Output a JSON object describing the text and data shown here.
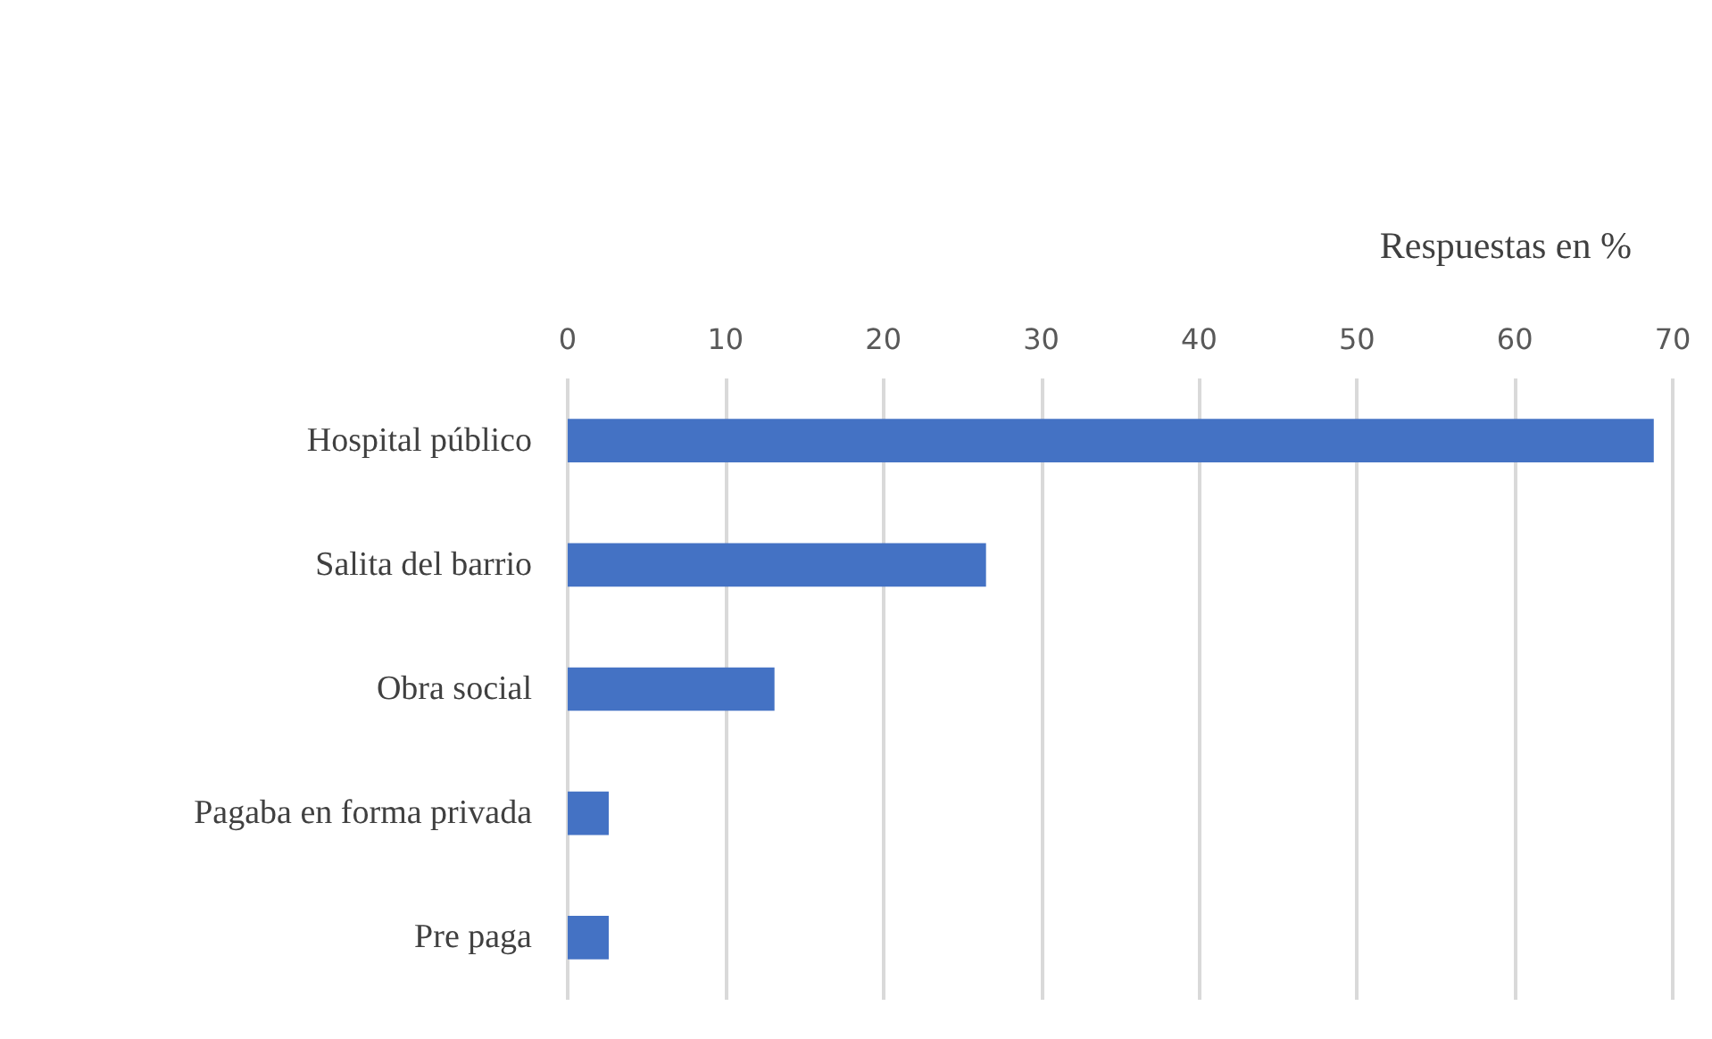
{
  "chart_data": {
    "type": "bar",
    "orientation": "horizontal",
    "xlabel": "Respuestas en %",
    "categories": [
      "Hospital público",
      "Salita del barrio",
      "Obra social",
      "Pagaba en forma privada",
      "Pre paga"
    ],
    "values": [
      68.8,
      26.5,
      13.1,
      2.6,
      2.6
    ],
    "color": "#4472c4",
    "xlim": [
      0,
      70
    ],
    "xticks": [
      0,
      10,
      20,
      30,
      40,
      50,
      60,
      70
    ],
    "grid": "x"
  }
}
